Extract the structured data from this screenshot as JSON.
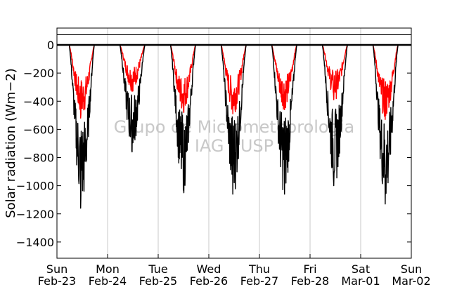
{
  "chart_data": {
    "type": "line",
    "ylabel": "Solar radiation (Wm−2)",
    "ylim": [
      -1500,
      120
    ],
    "yticks": [
      0,
      -200,
      -400,
      -600,
      -800,
      -1000,
      -1200,
      -1400
    ],
    "ytick_labels": [
      "0",
      "−200",
      "−400",
      "−600",
      "−800",
      "−1000",
      "−1200",
      "−1400"
    ],
    "xlim": [
      0,
      7
    ],
    "xticks": [
      {
        "day": "Sun",
        "date": "Feb-23"
      },
      {
        "day": "Mon",
        "date": "Feb-24"
      },
      {
        "day": "Tue",
        "date": "Feb-25"
      },
      {
        "day": "Wed",
        "date": "Feb-26"
      },
      {
        "day": "Thu",
        "date": "Feb-27"
      },
      {
        "day": "Fri",
        "date": "Feb-28"
      },
      {
        "day": "Sat",
        "date": "Mar-01"
      },
      {
        "day": "Sun",
        "date": "Mar-02"
      }
    ],
    "grid": "vertical",
    "series": [
      {
        "color": "#000000",
        "daily_minimum": [
          -1160,
          -760,
          -1050,
          -1060,
          -1060,
          -1000,
          -1130
        ]
      },
      {
        "color": "#ff0000",
        "daily_minimum": [
          -520,
          -330,
          -480,
          -490,
          -460,
          -390,
          -530
        ]
      }
    ],
    "watermark": [
      "Grupo de Micrometeorologia",
      "IAG / USP"
    ]
  }
}
